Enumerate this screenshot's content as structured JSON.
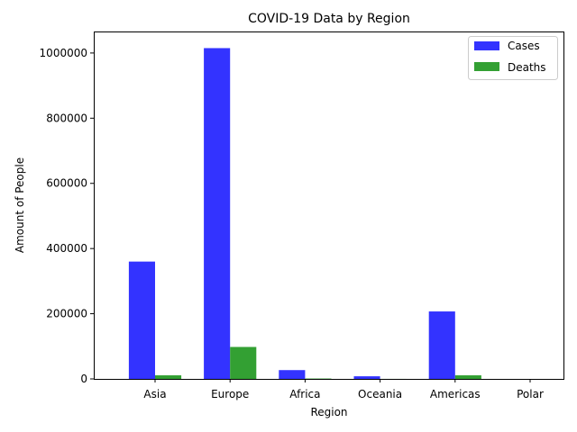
{
  "chart_data": {
    "type": "bar",
    "title": "COVID-19 Data by Region",
    "xlabel": "Region",
    "ylabel": "Amount of People",
    "categories": [
      "Asia",
      "Europe",
      "Africa",
      "Oceania",
      "Americas",
      "Polar"
    ],
    "series": [
      {
        "name": "Cases",
        "color": "#3333ff",
        "values": [
          360000,
          1015000,
          27000,
          8000,
          207000,
          0
        ]
      },
      {
        "name": "Deaths",
        "color": "#33a033",
        "values": [
          11000,
          98000,
          1200,
          100,
          11000,
          0
        ]
      }
    ],
    "ylim": [
      0,
      1066000
    ],
    "yticks": [
      0,
      200000,
      400000,
      600000,
      800000,
      1000000
    ],
    "ytick_labels": [
      "0",
      "200000",
      "400000",
      "600000",
      "800000",
      "1000000"
    ],
    "legend": "top-right",
    "grid": false
  }
}
